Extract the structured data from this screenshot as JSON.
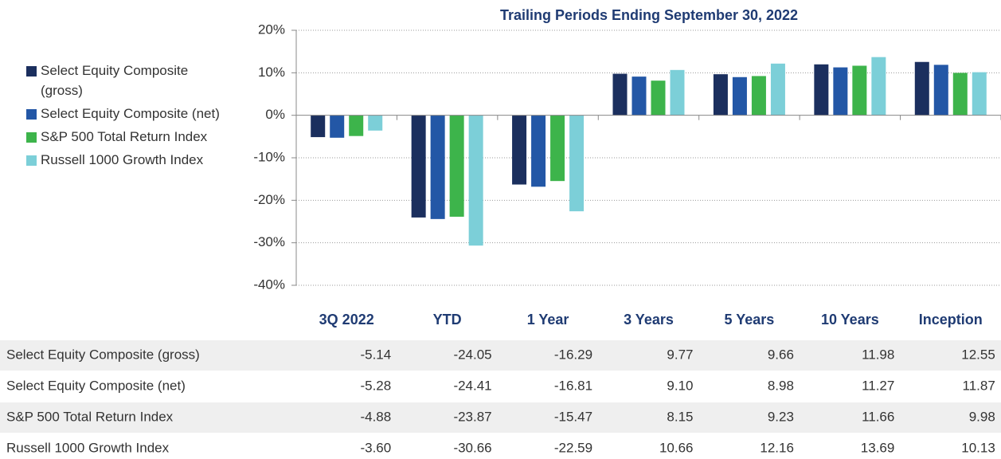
{
  "chart_data": {
    "type": "bar",
    "title": "Trailing Periods Ending September 30, 2022",
    "categories": [
      "3Q 2022",
      "YTD",
      "1 Year",
      "3 Years",
      "5 Years",
      "10 Years",
      "Inception"
    ],
    "series": [
      {
        "name": "Select Equity Composite (gross)",
        "color": "#1b2f5e",
        "values": [
          -5.14,
          -24.05,
          -16.29,
          9.77,
          9.66,
          11.98,
          12.55
        ],
        "value_labels": [
          "-5.14",
          "-24.05",
          "-16.29",
          "9.77",
          "9.66",
          "11.98",
          "12.55"
        ]
      },
      {
        "name": "Select Equity Composite (net)",
        "color": "#2357a6",
        "values": [
          -5.28,
          -24.41,
          -16.81,
          9.1,
          8.98,
          11.27,
          11.87
        ],
        "value_labels": [
          "-5.28",
          "-24.41",
          "-16.81",
          "9.10",
          "8.98",
          "11.27",
          "11.87"
        ]
      },
      {
        "name": "S&P 500 Total Return Index",
        "color": "#3db44b",
        "values": [
          -4.88,
          -23.87,
          -15.47,
          8.15,
          9.23,
          11.66,
          9.98
        ],
        "value_labels": [
          "-4.88",
          "-23.87",
          "-15.47",
          "8.15",
          "9.23",
          "11.66",
          "9.98"
        ]
      },
      {
        "name": "Russell 1000 Growth Index",
        "color": "#7ccfd8",
        "values": [
          -3.6,
          -30.66,
          -22.59,
          10.66,
          12.16,
          13.69,
          10.13
        ],
        "value_labels": [
          "-3.60",
          "-30.66",
          "-22.59",
          "10.66",
          "12.16",
          "13.69",
          "10.13"
        ]
      }
    ],
    "ylim": [
      -40,
      20
    ],
    "yticks": [
      {
        "value": -40,
        "label": "-40%"
      },
      {
        "value": -30,
        "label": "-30%"
      },
      {
        "value": -20,
        "label": "-20%"
      },
      {
        "value": -10,
        "label": "-10%"
      },
      {
        "value": 0,
        "label": "0%"
      },
      {
        "value": 10,
        "label": "10%"
      },
      {
        "value": 20,
        "label": "20%"
      }
    ],
    "grid": true,
    "legend": "left"
  }
}
